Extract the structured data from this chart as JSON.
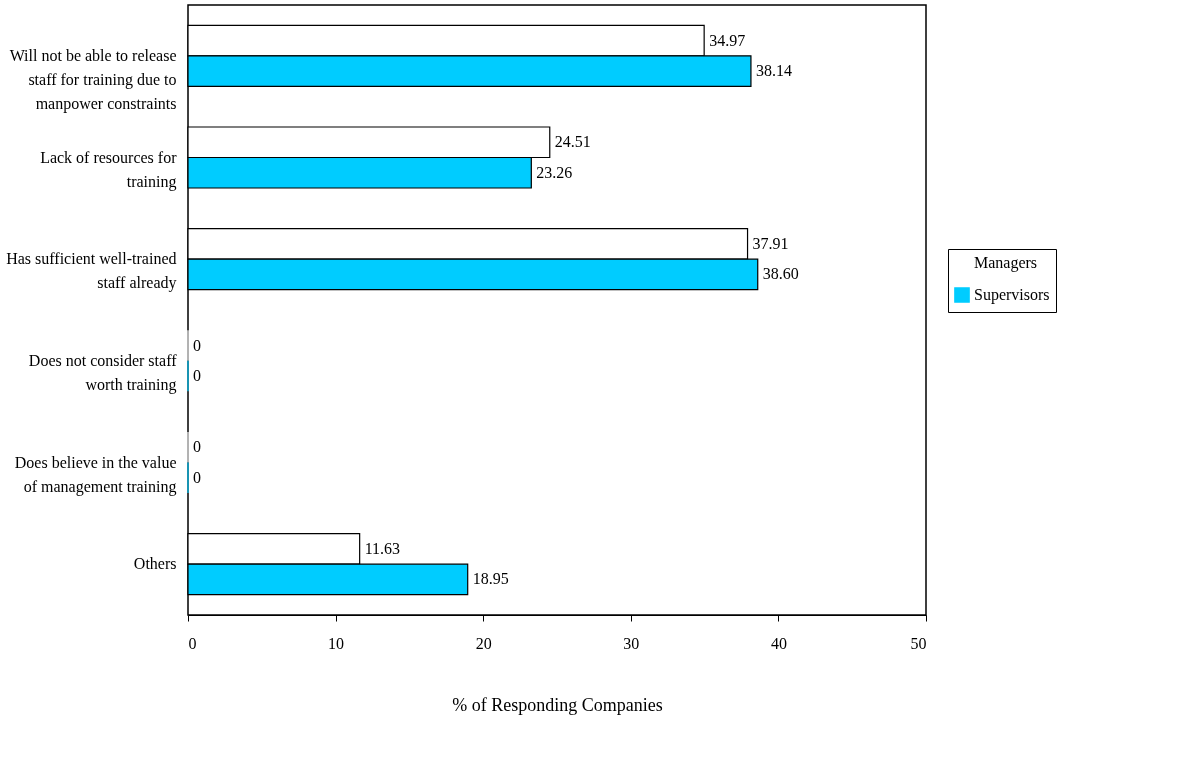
{
  "chart_data": {
    "type": "bar",
    "orientation": "horizontal",
    "xlabel": "% of Responding Companies",
    "categories": [
      "Will not be able to release staff for training due to manpower constraints",
      "Lack of resources for training",
      "Has sufficient well-trained staff already",
      "Does not consider staff worth training",
      "Does believe in the value of management training",
      "Others"
    ],
    "series": [
      {
        "name": "Managers",
        "color": "#ffffff",
        "values": [
          34.97,
          24.51,
          37.91,
          0,
          0,
          11.63
        ],
        "value_labels": [
          "34.97",
          "24.51",
          "37.91",
          "0",
          "0",
          "11.63"
        ]
      },
      {
        "name": "Supervisors",
        "color": "#00ccff",
        "values": [
          38.14,
          23.26,
          38.6,
          0,
          0,
          18.95
        ],
        "value_labels": [
          "38.14",
          "23.26",
          "38.60",
          "0",
          "0",
          "18.95"
        ]
      }
    ],
    "xlim": [
      0,
      50
    ],
    "xticks": [
      0,
      10,
      20,
      30,
      40,
      50
    ],
    "grid": false,
    "legend": "right"
  }
}
